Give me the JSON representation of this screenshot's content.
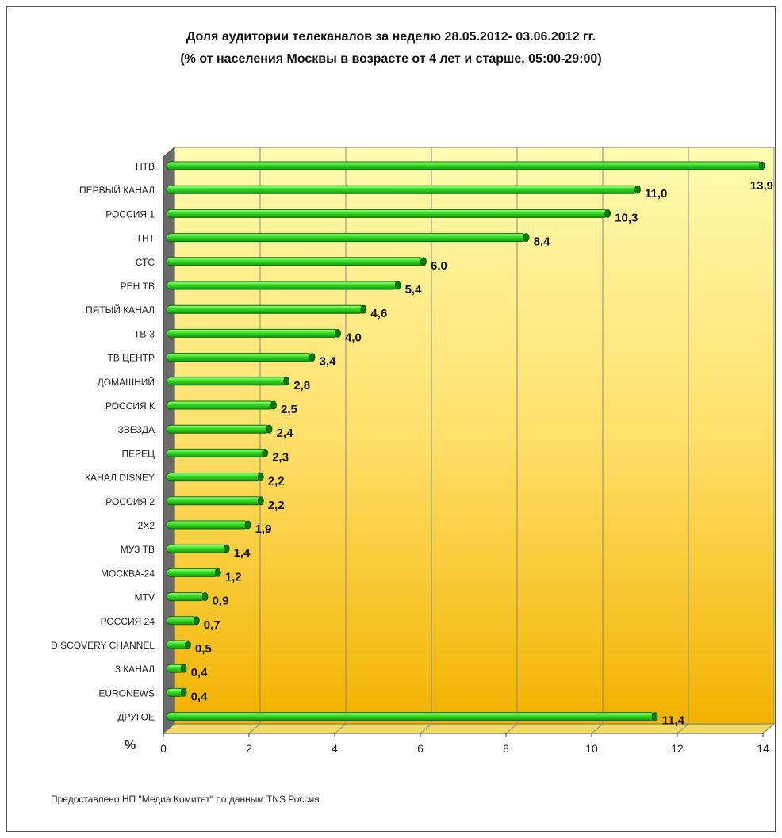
{
  "chart_data": {
    "type": "bar",
    "orientation": "horizontal",
    "title": "Доля аудитории телеканалов за неделю 28.05.2012- 03.06.2012 гг.",
    "subtitle": "(% от населения Москвы в возрасте от 4 лет и старше, 05:00-29:00)",
    "xlabel": "%",
    "xlim": [
      0,
      14
    ],
    "xticks": [
      "0",
      "2",
      "4",
      "6",
      "8",
      "10",
      "12",
      "14"
    ],
    "grid": true,
    "categories": [
      "НТВ",
      "ПЕРВЫЙ КАНАЛ",
      "РОССИЯ 1",
      "ТНТ",
      "СТС",
      "РЕН ТВ",
      "ПЯТЫЙ КАНАЛ",
      "ТВ-3",
      "ТВ ЦЕНТР",
      "ДОМАШНИЙ",
      "РОССИЯ К",
      "ЗВЕЗДА",
      "ПЕРЕЦ",
      "КАНАЛ DISNEY",
      "РОССИЯ 2",
      "2Х2",
      "МУЗ ТВ",
      "МОСКВА-24",
      "MTV",
      "РОССИЯ 24",
      "DISCOVERY CHANNEL",
      "3 КАНАЛ",
      "EURONEWS",
      "ДРУГОЕ"
    ],
    "values": [
      13.9,
      11.0,
      10.3,
      8.4,
      6.0,
      5.4,
      4.6,
      4.0,
      3.4,
      2.8,
      2.5,
      2.4,
      2.3,
      2.2,
      2.2,
      1.9,
      1.4,
      1.2,
      0.9,
      0.7,
      0.5,
      0.4,
      0.4,
      11.4
    ],
    "value_labels": [
      "13,9",
      "11,0",
      "10,3",
      "8,4",
      "6,0",
      "5,4",
      "4,6",
      "4,0",
      "3,4",
      "2,8",
      "2,5",
      "2,4",
      "2,3",
      "2,2",
      "2,2",
      "1,9",
      "1,4",
      "1,2",
      "0,9",
      "0,7",
      "0,5",
      "0,4",
      "0,4",
      "11,4"
    ],
    "colors": {
      "bar": "#33dd22",
      "bar_dark": "#0a7a0a",
      "bg_top": "#fffbb0",
      "bg_bottom": "#f2b300"
    }
  },
  "footer": "Предоставлено НП \"Медиа Комитет\" по данным TNS Россия"
}
